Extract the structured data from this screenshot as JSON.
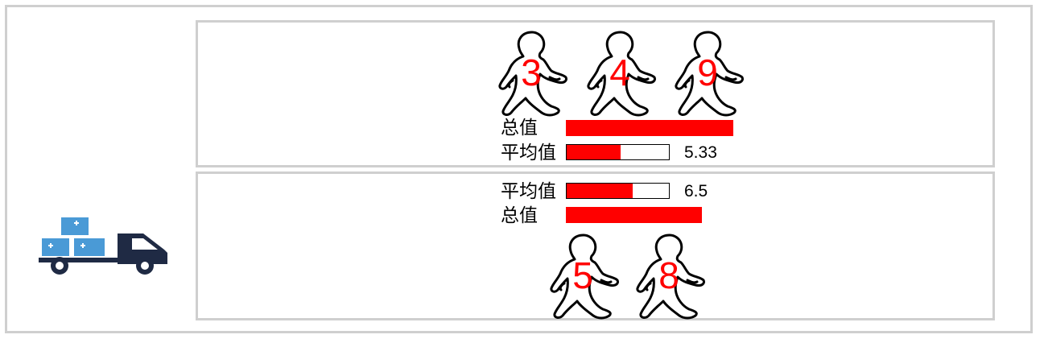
{
  "labels": {
    "total": "总值",
    "average": "平均值"
  },
  "groups": [
    {
      "people": [
        3,
        4,
        9
      ],
      "total": 16,
      "average": 5.33,
      "average_text": "5.33",
      "total_fill": 1.0,
      "average_fill": 0.533
    },
    {
      "people": [
        5,
        8
      ],
      "total": 13,
      "average": 6.5,
      "average_text": "6.5",
      "total_fill": 0.8125,
      "average_fill": 0.65
    }
  ],
  "colors": {
    "accent": "#ff0000",
    "border": "#cfcfcf",
    "icon": "#4a9ad6",
    "truck": "#1f2a44"
  },
  "icons": {
    "left": "delivery-truck-icon",
    "person": "walking-person-icon"
  }
}
